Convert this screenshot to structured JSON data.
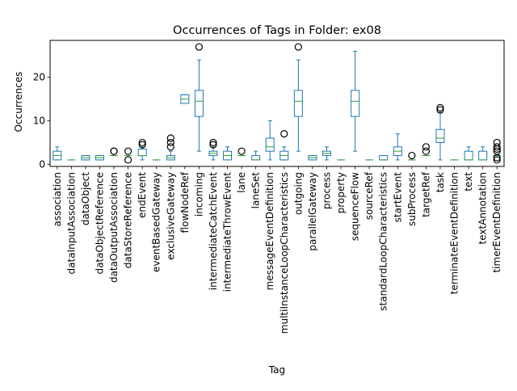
{
  "chart_data": {
    "type": "boxplot",
    "title": "Occurrences of Tags in Folder: ex08",
    "xlabel": "Tag",
    "ylabel": "Occurrences",
    "ylim": [
      -0.5,
      28.5
    ],
    "yticks": [
      0,
      10,
      20
    ],
    "grid": false,
    "box_color": "#1f77b4",
    "median_color": "#2ca02c",
    "outlier_color": "#000000",
    "categories": [
      "association",
      "dataInputAssociation",
      "dataObject",
      "dataObjectReference",
      "dataOutputAssociation",
      "dataStoreReference",
      "endEvent",
      "eventBasedGateway",
      "exclusiveGateway",
      "flowNodeRef",
      "incoming",
      "intermediateCatchEvent",
      "intermediateThrowEvent",
      "lane",
      "laneSet",
      "messageEventDefinition",
      "multiInstanceLoopCharacteristics",
      "outgoing",
      "parallelGateway",
      "process",
      "property",
      "sequenceFlow",
      "sourceRef",
      "standardLoopCharacteristics",
      "startEvent",
      "subProcess",
      "targetRef",
      "task",
      "terminateEventDefinition",
      "text",
      "textAnnotation",
      "timerEventDefinition"
    ],
    "boxes": [
      {
        "whislo": 1,
        "q1": 1,
        "med": 2,
        "q3": 3,
        "whishi": 4,
        "fliers": []
      },
      {
        "whislo": 1,
        "q1": 1,
        "med": 1,
        "q3": 1,
        "whishi": 1,
        "fliers": []
      },
      {
        "whislo": 1,
        "q1": 1,
        "med": 1.5,
        "q3": 2,
        "whishi": 2,
        "fliers": []
      },
      {
        "whislo": 1,
        "q1": 1,
        "med": 1.5,
        "q3": 2,
        "whishi": 2,
        "fliers": []
      },
      {
        "whislo": 2,
        "q1": 2,
        "med": 2,
        "q3": 2,
        "whishi": 2,
        "fliers": [
          3,
          3
        ]
      },
      {
        "whislo": 2,
        "q1": 2,
        "med": 2,
        "q3": 2,
        "whishi": 2,
        "fliers": [
          1,
          3
        ]
      },
      {
        "whislo": 1,
        "q1": 2,
        "med": 2,
        "q3": 3.5,
        "whishi": 4,
        "fliers": [
          5,
          4.5
        ]
      },
      {
        "whislo": 1,
        "q1": 1,
        "med": 1,
        "q3": 1,
        "whishi": 1,
        "fliers": []
      },
      {
        "whislo": 1,
        "q1": 1,
        "med": 1.5,
        "q3": 2,
        "whishi": 3,
        "fliers": [
          4,
          5,
          6
        ]
      },
      {
        "whislo": 14,
        "q1": 14,
        "med": 15,
        "q3": 16,
        "whishi": 16,
        "fliers": []
      },
      {
        "whislo": 3,
        "q1": 11,
        "med": 14.5,
        "q3": 17,
        "whishi": 24,
        "fliers": [
          27
        ]
      },
      {
        "whislo": 1,
        "q1": 2,
        "med": 2.5,
        "q3": 3,
        "whishi": 4,
        "fliers": [
          5,
          4.5
        ]
      },
      {
        "whislo": 1,
        "q1": 1,
        "med": 2,
        "q3": 3,
        "whishi": 4,
        "fliers": []
      },
      {
        "whislo": 2,
        "q1": 2,
        "med": 2,
        "q3": 2,
        "whishi": 2,
        "fliers": [
          3
        ]
      },
      {
        "whislo": 1,
        "q1": 1,
        "med": 1,
        "q3": 2,
        "whishi": 3,
        "fliers": []
      },
      {
        "whislo": 1,
        "q1": 3,
        "med": 4,
        "q3": 6,
        "whishi": 10,
        "fliers": []
      },
      {
        "whislo": 1,
        "q1": 1,
        "med": 2,
        "q3": 3,
        "whishi": 4,
        "fliers": [
          7
        ]
      },
      {
        "whislo": 3,
        "q1": 11,
        "med": 14.5,
        "q3": 17,
        "whishi": 24,
        "fliers": [
          27
        ]
      },
      {
        "whislo": 1,
        "q1": 1,
        "med": 1.5,
        "q3": 2,
        "whishi": 2,
        "fliers": []
      },
      {
        "whislo": 1,
        "q1": 2,
        "med": 2.5,
        "q3": 3,
        "whishi": 4,
        "fliers": []
      },
      {
        "whislo": 1,
        "q1": 1,
        "med": 1,
        "q3": 1,
        "whishi": 1,
        "fliers": []
      },
      {
        "whislo": 3,
        "q1": 11,
        "med": 14.5,
        "q3": 17,
        "whishi": 26,
        "fliers": []
      },
      {
        "whislo": 1,
        "q1": 1,
        "med": 1,
        "q3": 1,
        "whishi": 1,
        "fliers": []
      },
      {
        "whislo": 1,
        "q1": 1,
        "med": 1,
        "q3": 2,
        "whishi": 2,
        "fliers": []
      },
      {
        "whislo": 1,
        "q1": 2,
        "med": 3,
        "q3": 4,
        "whishi": 7,
        "fliers": []
      },
      {
        "whislo": 1,
        "q1": 1,
        "med": 1,
        "q3": 1,
        "whishi": 1,
        "fliers": [
          2
        ]
      },
      {
        "whislo": 2,
        "q1": 2,
        "med": 2,
        "q3": 2,
        "whishi": 2,
        "fliers": [
          3,
          4
        ]
      },
      {
        "whislo": 1,
        "q1": 5,
        "med": 6,
        "q3": 8,
        "whishi": 12,
        "fliers": [
          13,
          12.5
        ]
      },
      {
        "whislo": 1,
        "q1": 1,
        "med": 1,
        "q3": 1,
        "whishi": 1,
        "fliers": []
      },
      {
        "whislo": 1,
        "q1": 1,
        "med": 1,
        "q3": 3,
        "whishi": 4,
        "fliers": []
      },
      {
        "whislo": 1,
        "q1": 1,
        "med": 1,
        "q3": 3,
        "whishi": 4,
        "fliers": []
      },
      {
        "whislo": 2,
        "q1": 2,
        "med": 2,
        "q3": 2,
        "whishi": 2,
        "fliers": [
          1,
          3,
          4,
          5,
          1.5,
          3.5
        ]
      }
    ]
  }
}
